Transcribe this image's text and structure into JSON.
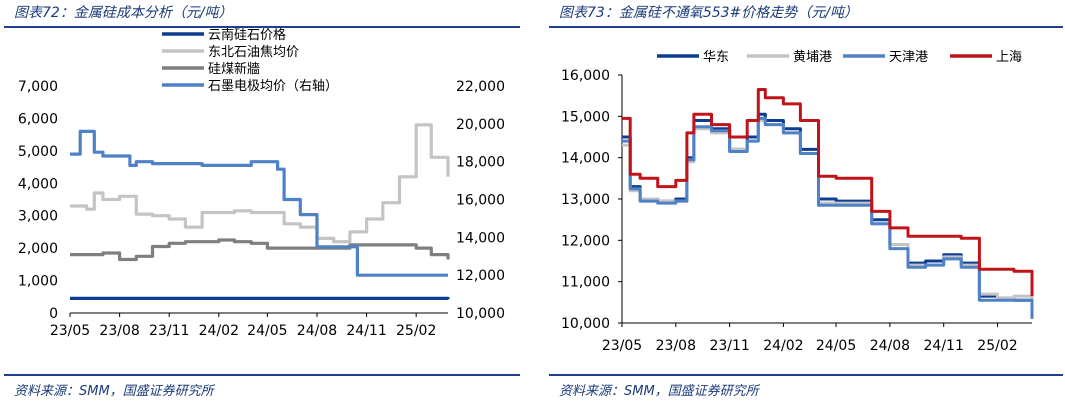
{
  "left": {
    "title": "图表72：金属硅成本分析（元/吨）",
    "source": "资料来源：SMM，国盛证券研究所"
  },
  "right": {
    "title": "图表73：金属硅不通氧553#价格走势（元/吨）",
    "source": "资料来源：SMM，国盛证券研究所"
  },
  "chart_data": [
    {
      "type": "line",
      "title": "金属硅成本分析（元/吨）",
      "x_ticks": [
        "23/05",
        "23/08",
        "23/11",
        "24/02",
        "24/05",
        "24/08",
        "24/11",
        "25/02"
      ],
      "xlim": [
        "2023-05",
        "2025-04"
      ],
      "ylim": [
        0,
        7000
      ],
      "yticks": [
        "0",
        "1,000",
        "2,000",
        "3,000",
        "4,000",
        "5,000",
        "6,000",
        "7,000"
      ],
      "ylim_right": [
        10000,
        22000
      ],
      "yticks_right": [
        "10,000",
        "12,000",
        "14,000",
        "16,000",
        "18,000",
        "20,000",
        "22,000"
      ],
      "legend_position": "top-left",
      "grid": false,
      "series": [
        {
          "name": "云南硅石价格",
          "color": "#0d3d91",
          "axis": "left",
          "x": [
            "2023-05",
            "2024-05",
            "2025-04"
          ],
          "y": [
            450,
            450,
            420
          ]
        },
        {
          "name": "东北石油焦均价",
          "color": "#c4c4c4",
          "axis": "left",
          "x": [
            "2023-05",
            "2023-06",
            "2023-06-15",
            "2023-07",
            "2023-08",
            "2023-09",
            "2023-10",
            "2023-11",
            "2023-12",
            "2024-01",
            "2024-02",
            "2024-03",
            "2024-04",
            "2024-05",
            "2024-06",
            "2024-07",
            "2024-08",
            "2024-09",
            "2024-10",
            "2024-11",
            "2024-12",
            "2025-01",
            "2025-02",
            "2025-02-15",
            "2025-03",
            "2025-04"
          ],
          "y": [
            3300,
            3200,
            3700,
            3500,
            3600,
            3050,
            3000,
            2900,
            2650,
            3100,
            3100,
            3150,
            3100,
            3100,
            2750,
            2650,
            2300,
            2200,
            2500,
            2900,
            3400,
            4200,
            5800,
            5800,
            4800,
            4200
          ]
        },
        {
          "name": "硅煤新牆",
          "color": "#7f7f7f",
          "axis": "left",
          "x": [
            "2023-05",
            "2023-06",
            "2023-07",
            "2023-08",
            "2023-09",
            "2023-10",
            "2023-11",
            "2023-12",
            "2024-01",
            "2024-02",
            "2024-03",
            "2024-04",
            "2024-05",
            "2024-06",
            "2024-07",
            "2024-08",
            "2024-09",
            "2024-10",
            "2024-11",
            "2024-12",
            "2025-01",
            "2025-02",
            "2025-03",
            "2025-04"
          ],
          "y": [
            1800,
            1800,
            1850,
            1650,
            1750,
            2050,
            2150,
            2200,
            2200,
            2250,
            2200,
            2150,
            2000,
            2000,
            2000,
            2000,
            2000,
            2100,
            2100,
            2100,
            2100,
            2000,
            1800,
            1650
          ]
        },
        {
          "name": "石墨电极均价（右轴）",
          "color": "#4f81c7",
          "axis": "right",
          "x": [
            "2023-05",
            "2023-05-20",
            "2023-06",
            "2023-06-15",
            "2023-07",
            "2023-08",
            "2023-08-20",
            "2023-09",
            "2023-10",
            "2023-11",
            "2023-12",
            "2024-01",
            "2024-02",
            "2024-03",
            "2024-04",
            "2024-05",
            "2024-05-20",
            "2024-06",
            "2024-07",
            "2024-08",
            "2024-09",
            "2024-10",
            "2024-10-15",
            "2024-11",
            "2024-12",
            "2025-01",
            "2025-02",
            "2025-03",
            "2025-04"
          ],
          "y": [
            18400,
            19600,
            19600,
            18500,
            18300,
            18300,
            17800,
            18000,
            17900,
            17900,
            17900,
            17800,
            17800,
            17800,
            18000,
            18000,
            17600,
            16000,
            15200,
            13500,
            13500,
            13500,
            12000,
            12000,
            12000,
            12000,
            12000,
            12000,
            12000
          ]
        }
      ]
    },
    {
      "type": "line",
      "title": "金属硅不通氧553#价格走势（元/吨）",
      "x_ticks": [
        "23/05",
        "23/08",
        "23/11",
        "24/02",
        "24/05",
        "24/08",
        "24/11",
        "25/02"
      ],
      "xlim": [
        "2023-05",
        "2025-04"
      ],
      "ylim": [
        10000,
        16000
      ],
      "yticks": [
        "10,000",
        "11,000",
        "12,000",
        "13,000",
        "14,000",
        "15,000",
        "16,000"
      ],
      "legend_position": "top",
      "grid": false,
      "series": [
        {
          "name": "华东",
          "color": "#0d3d91",
          "x": [
            "2023-05",
            "2023-05-15",
            "2023-06",
            "2023-07",
            "2023-08",
            "2023-08-20",
            "2023-09",
            "2023-10",
            "2023-11",
            "2023-12",
            "2023-12-20",
            "2024-01",
            "2024-02",
            "2024-03",
            "2024-04",
            "2024-05",
            "2024-06",
            "2024-07",
            "2024-08",
            "2024-09",
            "2024-10",
            "2024-11",
            "2024-12",
            "2025-01",
            "2025-02",
            "2025-03",
            "2025-04"
          ],
          "y": [
            14500,
            13300,
            13000,
            12950,
            13000,
            14000,
            14900,
            14700,
            14200,
            14500,
            15050,
            14900,
            14700,
            14200,
            13000,
            12950,
            12950,
            12500,
            11900,
            11450,
            11500,
            11650,
            11450,
            10650,
            10600,
            10550,
            10150
          ]
        },
        {
          "name": "黄埔港",
          "color": "#c4c4c4",
          "x": [
            "2023-05",
            "2023-05-15",
            "2023-06",
            "2023-07",
            "2023-08",
            "2023-08-20",
            "2023-09",
            "2023-10",
            "2023-11",
            "2023-12",
            "2023-12-20",
            "2024-01",
            "2024-02",
            "2024-03",
            "2024-04",
            "2024-05",
            "2024-06",
            "2024-07",
            "2024-08",
            "2024-09",
            "2024-10",
            "2024-11",
            "2024-12",
            "2025-01",
            "2025-02",
            "2025-03",
            "2025-04"
          ],
          "y": [
            14300,
            13200,
            13000,
            12950,
            12950,
            13900,
            14700,
            14600,
            14200,
            14400,
            14900,
            14800,
            14600,
            14100,
            12900,
            12900,
            12900,
            12400,
            11900,
            11400,
            11400,
            11600,
            11400,
            10700,
            10600,
            10650,
            10500
          ]
        },
        {
          "name": "天津港",
          "color": "#4f81c7",
          "x": [
            "2023-05",
            "2023-05-15",
            "2023-06",
            "2023-07",
            "2023-08",
            "2023-08-20",
            "2023-09",
            "2023-10",
            "2023-11",
            "2023-12",
            "2023-12-20",
            "2024-01",
            "2024-02",
            "2024-03",
            "2024-04",
            "2024-05",
            "2024-06",
            "2024-07",
            "2024-08",
            "2024-09",
            "2024-10",
            "2024-11",
            "2024-12",
            "2025-01",
            "2025-02",
            "2025-03",
            "2025-04"
          ],
          "y": [
            14400,
            13250,
            12950,
            12900,
            12950,
            13950,
            14750,
            14650,
            14150,
            14400,
            14950,
            14800,
            14600,
            14100,
            12850,
            12850,
            12850,
            12400,
            11800,
            11350,
            11400,
            11550,
            11350,
            10550,
            10550,
            10550,
            10100
          ]
        },
        {
          "name": "上海",
          "color": "#c0141b",
          "x": [
            "2023-05",
            "2023-05-15",
            "2023-06",
            "2023-07",
            "2023-08",
            "2023-08-20",
            "2023-09",
            "2023-10",
            "2023-11",
            "2023-12",
            "2023-12-20",
            "2024-01",
            "2024-02",
            "2024-03",
            "2024-04",
            "2024-05",
            "2024-06",
            "2024-07",
            "2024-08",
            "2024-09",
            "2024-10",
            "2024-11",
            "2024-12",
            "2025-01",
            "2025-02",
            "2025-03",
            "2025-04"
          ],
          "y": [
            14950,
            13600,
            13500,
            13300,
            13450,
            14600,
            15050,
            14800,
            14500,
            14900,
            15650,
            15450,
            15300,
            14900,
            13550,
            13500,
            13500,
            12700,
            12300,
            12100,
            12100,
            12100,
            12050,
            11300,
            11300,
            11250,
            10650
          ]
        }
      ]
    }
  ]
}
